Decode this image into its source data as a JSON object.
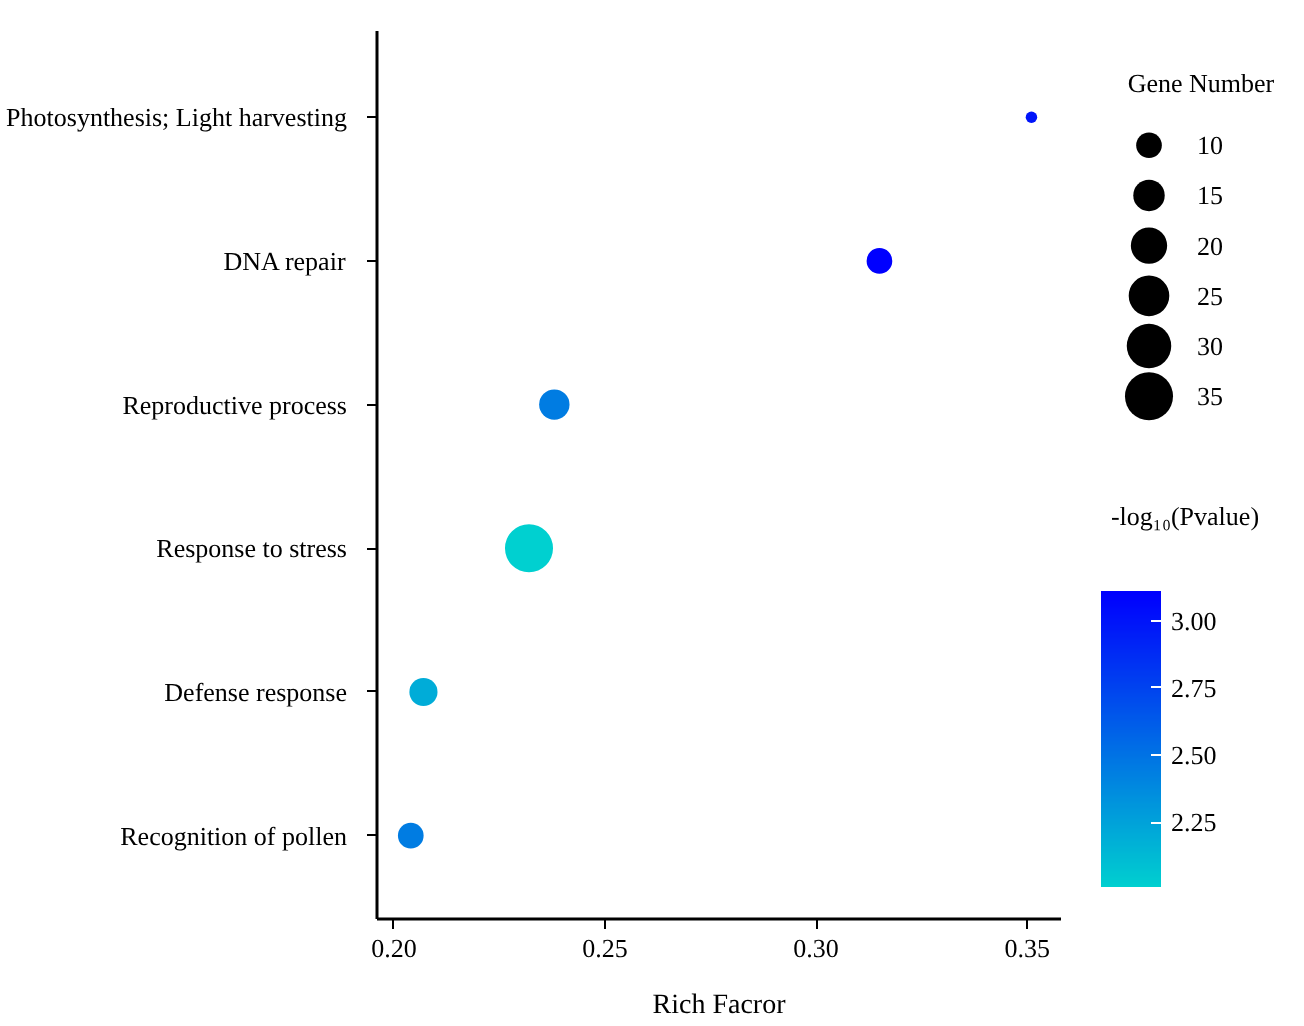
{
  "chart_data": {
    "type": "bubble",
    "xlabel": "Rich Facror",
    "categories": [
      "Photosynthesis; Light harvesting",
      "DNA repair",
      "Reproductive process",
      "Response to stress",
      "Defense response",
      "Recognition of pollen"
    ],
    "orientation": "horizontal",
    "values": [
      0.351,
      0.315,
      0.238,
      0.232,
      0.207,
      0.204
    ],
    "sizes": [
      2,
      10,
      14,
      35,
      12,
      10
    ],
    "size_legend": [
      10,
      15,
      20,
      25,
      30,
      35
    ],
    "legend_title": "Gene Number",
    "cvalues": [
      3.0,
      3.11,
      2.45,
      2.01,
      2.2,
      2.45
    ],
    "clabel": "-log₁₀(Pvalue)",
    "clim": [
      2.01,
      3.11
    ],
    "cticks": [
      {
        "value": 2.25,
        "label": "2.25"
      },
      {
        "value": 2.5,
        "label": "2.50"
      },
      {
        "value": 2.75,
        "label": "2.75"
      },
      {
        "value": 3.0,
        "label": "3.00"
      }
    ],
    "xlim": [
      0.196,
      0.358
    ],
    "xticks": [
      {
        "value": 0.2,
        "label": "0.20"
      },
      {
        "value": 0.25,
        "label": "0.25"
      },
      {
        "value": 0.3,
        "label": "0.30"
      },
      {
        "value": 0.35,
        "label": "0.35"
      }
    ],
    "grid": false
  }
}
